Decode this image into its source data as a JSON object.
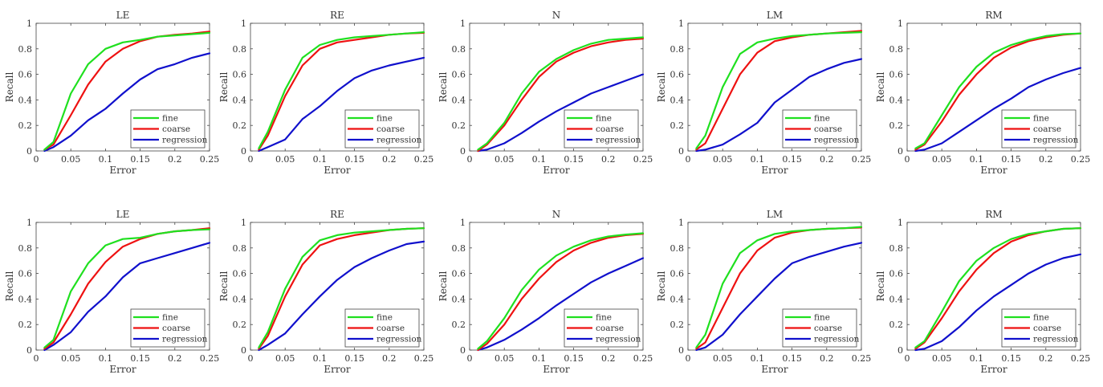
{
  "figure": {
    "xlabel": "Error",
    "ylabel": "Recall",
    "xticks": [
      "0",
      "0.05",
      "0.1",
      "0.15",
      "0.2",
      "0.25"
    ],
    "yticks": [
      "0",
      "0.2",
      "0.4",
      "0.6",
      "0.8",
      "1"
    ],
    "colors": {
      "fine": "#1fe01f",
      "coarse": "#ee1111",
      "regression": "#1010cc"
    }
  },
  "chart_data": [
    {
      "type": "line",
      "title": "LE",
      "xlabel": "Error",
      "ylabel": "Recall",
      "xlim": [
        0,
        0.25
      ],
      "ylim": [
        0,
        1
      ],
      "grid": false,
      "legend": "bottom-right",
      "x": [
        0.012,
        0.025,
        0.05,
        0.075,
        0.1,
        0.125,
        0.15,
        0.175,
        0.2,
        0.225,
        0.25
      ],
      "series": [
        {
          "name": "fine",
          "values": [
            0.01,
            0.07,
            0.45,
            0.68,
            0.8,
            0.85,
            0.87,
            0.895,
            0.905,
            0.915,
            0.925
          ]
        },
        {
          "name": "coarse",
          "values": [
            0.01,
            0.05,
            0.28,
            0.52,
            0.7,
            0.8,
            0.86,
            0.895,
            0.91,
            0.92,
            0.935
          ]
        },
        {
          "name": "regression",
          "values": [
            0.0,
            0.03,
            0.12,
            0.24,
            0.33,
            0.45,
            0.56,
            0.64,
            0.68,
            0.73,
            0.765
          ]
        }
      ]
    },
    {
      "type": "line",
      "title": "RE",
      "xlabel": "Error",
      "ylabel": "Recall",
      "xlim": [
        0,
        0.25
      ],
      "ylim": [
        0,
        1
      ],
      "grid": false,
      "legend": "bottom-right",
      "x": [
        0.012,
        0.025,
        0.05,
        0.075,
        0.1,
        0.125,
        0.15,
        0.175,
        0.2,
        0.225,
        0.25
      ],
      "series": [
        {
          "name": "fine",
          "values": [
            0.02,
            0.15,
            0.48,
            0.73,
            0.83,
            0.87,
            0.89,
            0.9,
            0.91,
            0.92,
            0.93
          ]
        },
        {
          "name": "coarse",
          "values": [
            0.01,
            0.12,
            0.43,
            0.67,
            0.8,
            0.85,
            0.87,
            0.89,
            0.91,
            0.92,
            0.925
          ]
        },
        {
          "name": "regression",
          "values": [
            0.0,
            0.03,
            0.09,
            0.25,
            0.35,
            0.47,
            0.57,
            0.63,
            0.67,
            0.7,
            0.73
          ]
        }
      ]
    },
    {
      "type": "line",
      "title": "N",
      "xlabel": "Error",
      "ylabel": "Recall",
      "xlim": [
        0,
        0.25
      ],
      "ylim": [
        0,
        1
      ],
      "grid": false,
      "legend": "bottom-right",
      "x": [
        0.012,
        0.025,
        0.05,
        0.075,
        0.1,
        0.125,
        0.15,
        0.175,
        0.2,
        0.225,
        0.25
      ],
      "series": [
        {
          "name": "fine",
          "values": [
            0.01,
            0.06,
            0.22,
            0.45,
            0.62,
            0.72,
            0.79,
            0.84,
            0.87,
            0.88,
            0.89
          ]
        },
        {
          "name": "coarse",
          "values": [
            0.0,
            0.05,
            0.2,
            0.4,
            0.58,
            0.7,
            0.77,
            0.82,
            0.85,
            0.87,
            0.88
          ]
        },
        {
          "name": "regression",
          "values": [
            0.0,
            0.01,
            0.06,
            0.14,
            0.23,
            0.31,
            0.38,
            0.45,
            0.5,
            0.55,
            0.6
          ]
        }
      ]
    },
    {
      "type": "line",
      "title": "LM",
      "xlabel": "Error",
      "ylabel": "Recall",
      "xlim": [
        0,
        0.25
      ],
      "ylim": [
        0,
        1
      ],
      "grid": false,
      "legend": "bottom-right",
      "x": [
        0.012,
        0.025,
        0.05,
        0.075,
        0.1,
        0.125,
        0.15,
        0.175,
        0.2,
        0.225,
        0.25
      ],
      "series": [
        {
          "name": "fine",
          "values": [
            0.02,
            0.12,
            0.5,
            0.76,
            0.85,
            0.88,
            0.9,
            0.91,
            0.92,
            0.925,
            0.93
          ]
        },
        {
          "name": "coarse",
          "values": [
            0.01,
            0.06,
            0.33,
            0.6,
            0.77,
            0.86,
            0.89,
            0.91,
            0.92,
            0.93,
            0.94
          ]
        },
        {
          "name": "regression",
          "values": [
            0.0,
            0.01,
            0.05,
            0.13,
            0.22,
            0.38,
            0.48,
            0.58,
            0.64,
            0.69,
            0.72
          ]
        }
      ]
    },
    {
      "type": "line",
      "title": "RM",
      "xlabel": "Error",
      "ylabel": "Recall",
      "xlim": [
        0,
        0.25
      ],
      "ylim": [
        0,
        1
      ],
      "grid": false,
      "legend": "bottom-right",
      "x": [
        0.012,
        0.025,
        0.05,
        0.075,
        0.1,
        0.125,
        0.15,
        0.175,
        0.2,
        0.225,
        0.25
      ],
      "series": [
        {
          "name": "fine",
          "values": [
            0.02,
            0.06,
            0.28,
            0.5,
            0.66,
            0.77,
            0.83,
            0.87,
            0.9,
            0.915,
            0.92
          ]
        },
        {
          "name": "coarse",
          "values": [
            0.01,
            0.05,
            0.23,
            0.44,
            0.6,
            0.73,
            0.81,
            0.86,
            0.89,
            0.91,
            0.92
          ]
        },
        {
          "name": "regression",
          "values": [
            0.0,
            0.01,
            0.06,
            0.15,
            0.24,
            0.33,
            0.41,
            0.5,
            0.56,
            0.61,
            0.65
          ]
        }
      ]
    },
    {
      "type": "line",
      "title": "LE",
      "xlabel": "Error",
      "ylabel": "Recall",
      "xlim": [
        0,
        0.25
      ],
      "ylim": [
        0,
        1
      ],
      "grid": false,
      "legend": "bottom-right",
      "x": [
        0.012,
        0.025,
        0.05,
        0.075,
        0.1,
        0.125,
        0.15,
        0.175,
        0.2,
        0.225,
        0.25
      ],
      "series": [
        {
          "name": "fine",
          "values": [
            0.02,
            0.08,
            0.46,
            0.68,
            0.82,
            0.87,
            0.88,
            0.91,
            0.93,
            0.94,
            0.945
          ]
        },
        {
          "name": "coarse",
          "values": [
            0.01,
            0.06,
            0.28,
            0.52,
            0.69,
            0.81,
            0.87,
            0.91,
            0.93,
            0.94,
            0.955
          ]
        },
        {
          "name": "regression",
          "values": [
            0.0,
            0.04,
            0.14,
            0.3,
            0.42,
            0.57,
            0.68,
            0.72,
            0.76,
            0.8,
            0.84
          ]
        }
      ]
    },
    {
      "type": "line",
      "title": "RE",
      "xlabel": "Error",
      "ylabel": "Recall",
      "xlim": [
        0,
        0.25
      ],
      "ylim": [
        0,
        1
      ],
      "grid": false,
      "legend": "bottom-right",
      "x": [
        0.012,
        0.025,
        0.05,
        0.075,
        0.1,
        0.125,
        0.15,
        0.175,
        0.2,
        0.225,
        0.25
      ],
      "series": [
        {
          "name": "fine",
          "values": [
            0.02,
            0.14,
            0.48,
            0.73,
            0.86,
            0.9,
            0.92,
            0.93,
            0.94,
            0.95,
            0.955
          ]
        },
        {
          "name": "coarse",
          "values": [
            0.01,
            0.11,
            0.42,
            0.67,
            0.82,
            0.87,
            0.9,
            0.92,
            0.94,
            0.95,
            0.955
          ]
        },
        {
          "name": "regression",
          "values": [
            0.0,
            0.04,
            0.13,
            0.28,
            0.42,
            0.55,
            0.65,
            0.72,
            0.78,
            0.83,
            0.85
          ]
        }
      ]
    },
    {
      "type": "line",
      "title": "N",
      "xlabel": "Error",
      "ylabel": "Recall",
      "xlim": [
        0,
        0.25
      ],
      "ylim": [
        0,
        1
      ],
      "grid": false,
      "legend": "bottom-right",
      "x": [
        0.012,
        0.025,
        0.05,
        0.075,
        0.1,
        0.125,
        0.15,
        0.175,
        0.2,
        0.225,
        0.25
      ],
      "series": [
        {
          "name": "fine",
          "values": [
            0.01,
            0.07,
            0.25,
            0.47,
            0.63,
            0.74,
            0.81,
            0.86,
            0.89,
            0.905,
            0.915
          ]
        },
        {
          "name": "coarse",
          "values": [
            0.0,
            0.05,
            0.2,
            0.4,
            0.56,
            0.69,
            0.78,
            0.84,
            0.88,
            0.9,
            0.91
          ]
        },
        {
          "name": "regression",
          "values": [
            0.0,
            0.02,
            0.08,
            0.16,
            0.25,
            0.35,
            0.44,
            0.53,
            0.6,
            0.66,
            0.72
          ]
        }
      ]
    },
    {
      "type": "line",
      "title": "LM",
      "xlabel": "Error",
      "ylabel": "Recall",
      "xlim": [
        0,
        0.25
      ],
      "ylim": [
        0,
        1
      ],
      "grid": false,
      "legend": "bottom-right",
      "x": [
        0.012,
        0.025,
        0.05,
        0.075,
        0.1,
        0.125,
        0.15,
        0.175,
        0.2,
        0.225,
        0.25
      ],
      "series": [
        {
          "name": "fine",
          "values": [
            0.02,
            0.12,
            0.52,
            0.76,
            0.86,
            0.91,
            0.93,
            0.94,
            0.95,
            0.955,
            0.965
          ]
        },
        {
          "name": "coarse",
          "values": [
            0.01,
            0.06,
            0.33,
            0.6,
            0.78,
            0.88,
            0.92,
            0.94,
            0.95,
            0.955,
            0.96
          ]
        },
        {
          "name": "regression",
          "values": [
            0.0,
            0.02,
            0.12,
            0.28,
            0.42,
            0.56,
            0.68,
            0.73,
            0.77,
            0.81,
            0.84
          ]
        }
      ]
    },
    {
      "type": "line",
      "title": "RM",
      "xlabel": "Error",
      "ylabel": "Recall",
      "xlim": [
        0,
        0.25
      ],
      "ylim": [
        0,
        1
      ],
      "grid": false,
      "legend": "bottom-right",
      "x": [
        0.012,
        0.025,
        0.05,
        0.075,
        0.1,
        0.125,
        0.15,
        0.175,
        0.2,
        0.225,
        0.25
      ],
      "series": [
        {
          "name": "fine",
          "values": [
            0.02,
            0.07,
            0.3,
            0.54,
            0.7,
            0.8,
            0.87,
            0.91,
            0.93,
            0.95,
            0.955
          ]
        },
        {
          "name": "coarse",
          "values": [
            0.01,
            0.06,
            0.25,
            0.46,
            0.63,
            0.76,
            0.85,
            0.9,
            0.93,
            0.95,
            0.955
          ]
        },
        {
          "name": "regression",
          "values": [
            0.0,
            0.01,
            0.07,
            0.18,
            0.31,
            0.42,
            0.51,
            0.6,
            0.67,
            0.72,
            0.75
          ]
        }
      ]
    }
  ]
}
